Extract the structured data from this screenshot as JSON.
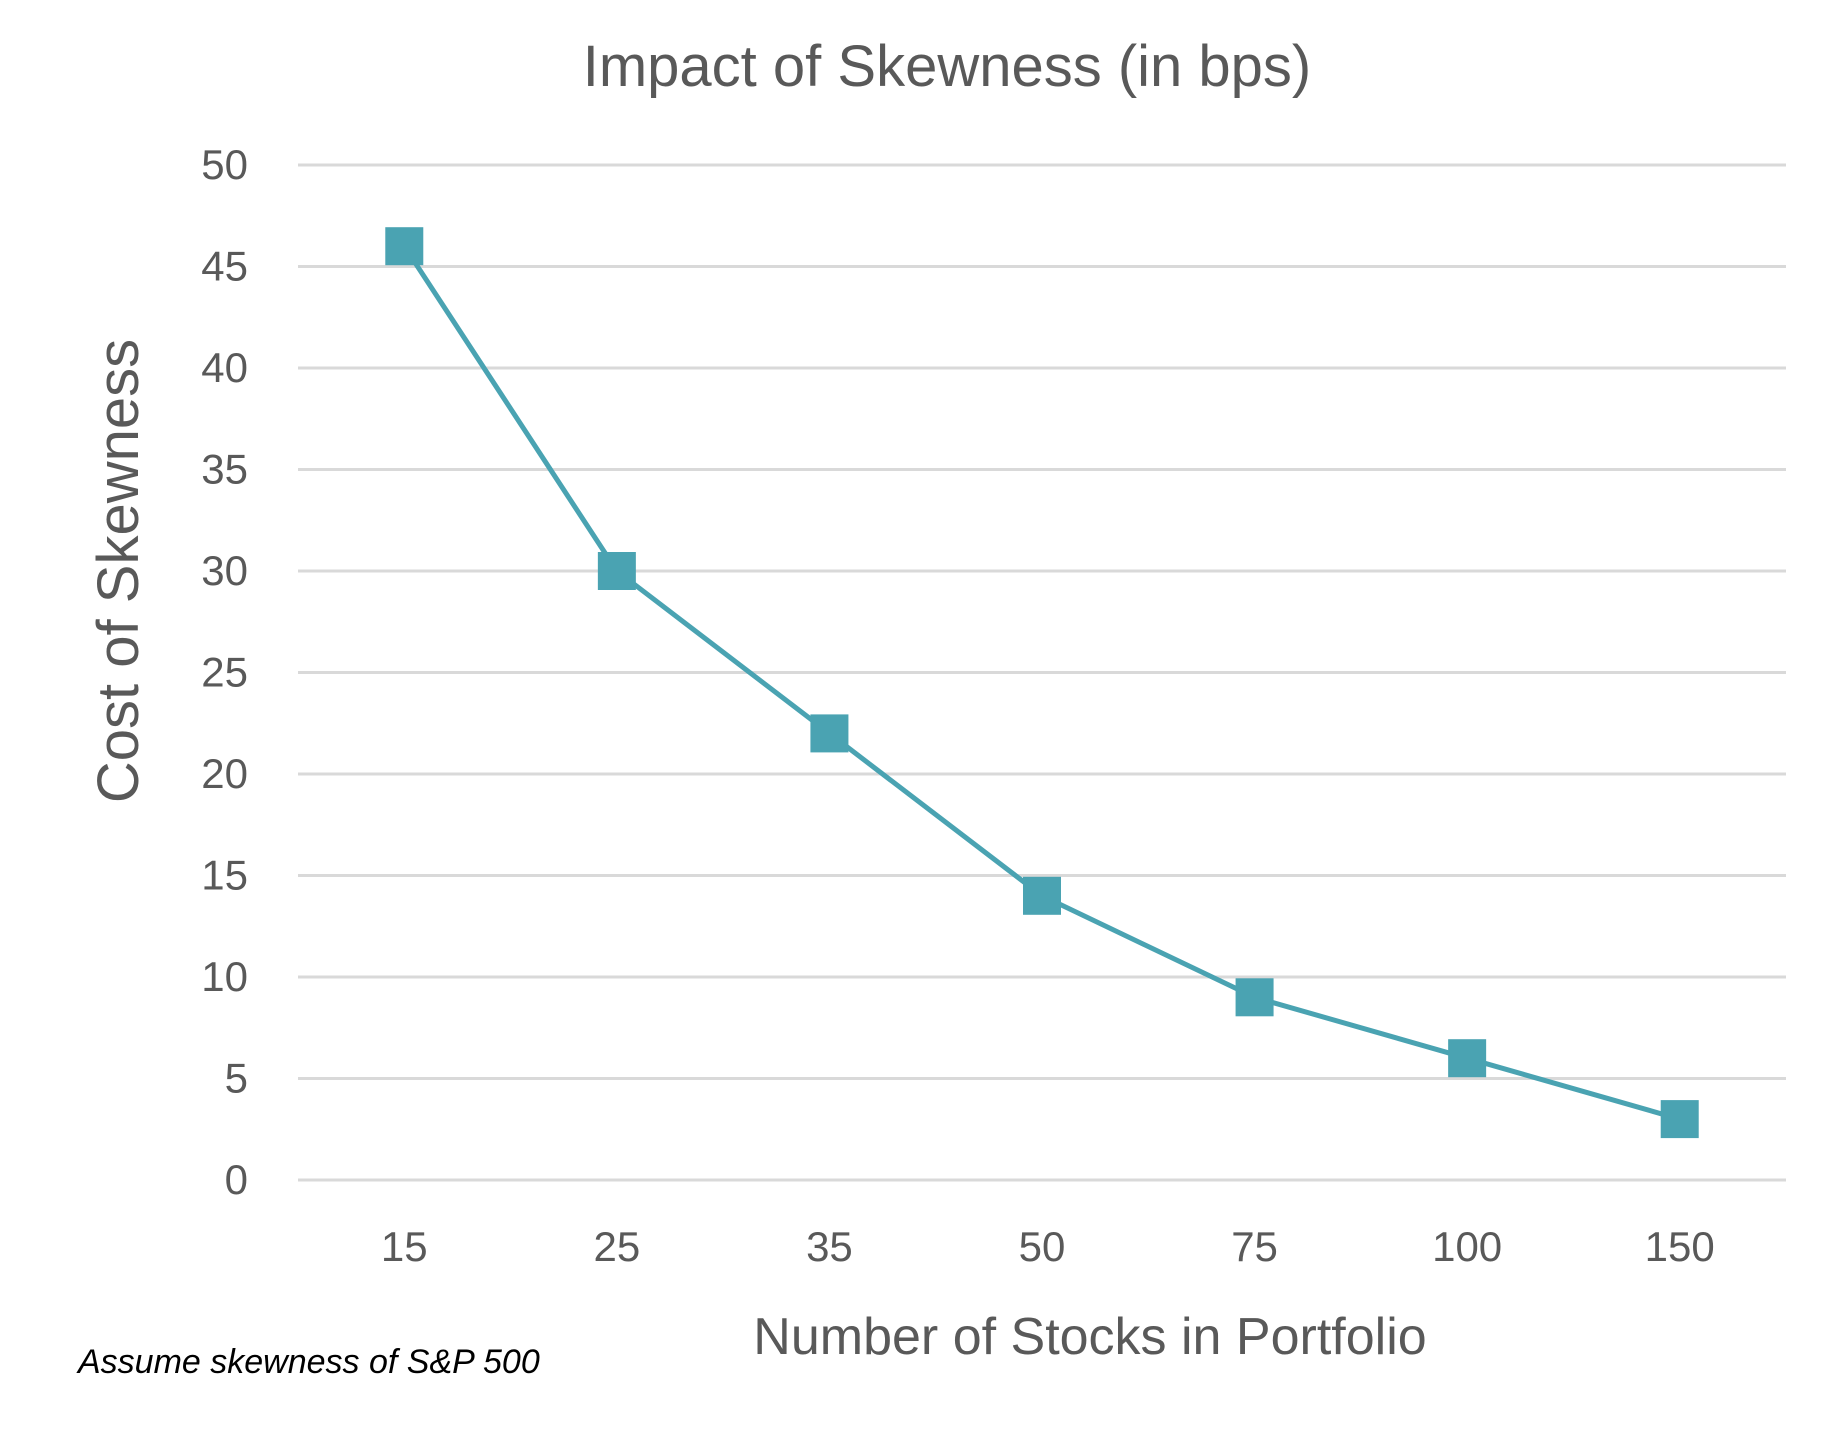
{
  "chart_data": {
    "type": "line",
    "title": "Impact of Skewness (in bps)",
    "xlabel": "Number of Stocks in Portfolio",
    "ylabel": "Cost of Skewness",
    "categories": [
      "15",
      "25",
      "35",
      "50",
      "75",
      "100",
      "150"
    ],
    "series": [
      {
        "values": [
          46,
          30,
          22,
          14,
          9,
          6,
          3
        ]
      }
    ],
    "ylim": [
      0,
      50
    ],
    "yticks": [
      "0",
      "5",
      "10",
      "15",
      "20",
      "25",
      "30",
      "35",
      "40",
      "45",
      "50"
    ],
    "grid": "horizontal",
    "marker": "square",
    "legend": "none"
  },
  "footnote": "Assume skewness of S&P 500",
  "colors": {
    "series": "#4aa3b2",
    "grid": "#d9d9d9",
    "text": "#595959",
    "footnote": "#000000"
  }
}
